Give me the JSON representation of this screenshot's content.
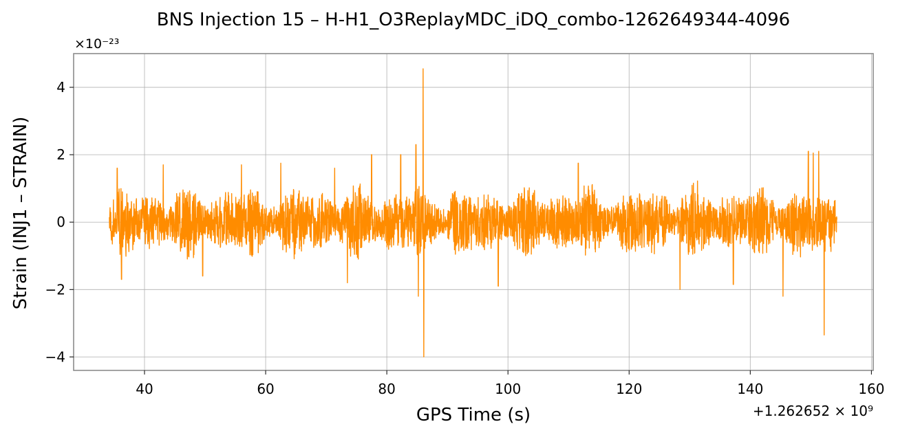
{
  "chart_data": {
    "type": "line",
    "title": "BNS Injection 15 – H-H1_O3ReplayMDC_iDQ_combo-1262649344-4096",
    "xlabel": "GPS Time (s)",
    "ylabel": "Strain (INJ1 – STRAIN)",
    "y_multiplier_label": "×10⁻²³",
    "x_offset_label": "+1.262652 × 10⁹",
    "xlim": [
      28.3,
      160.3
    ],
    "ylim": [
      -4.4,
      5.0
    ],
    "x_ticks": [
      40,
      60,
      80,
      100,
      120,
      140,
      160
    ],
    "x_tick_labels": [
      "40",
      "60",
      "80",
      "100",
      "120",
      "140",
      "160"
    ],
    "y_ticks": [
      -4,
      -2,
      0,
      2,
      4
    ],
    "y_tick_labels": [
      "−4",
      "−2",
      "0",
      "2",
      "4"
    ],
    "grid": true,
    "line_color": "#ff8c00",
    "series": [
      {
        "x_range": [
          34.2,
          154.3
        ],
        "baseline": 0,
        "typical_amplitude": 1.2,
        "peaks": [
          {
            "x": 35.5,
            "y": 1.6
          },
          {
            "x": 36.2,
            "y": -1.7
          },
          {
            "x": 43.1,
            "y": 1.7
          },
          {
            "x": 49.6,
            "y": -1.6
          },
          {
            "x": 56.0,
            "y": 1.7
          },
          {
            "x": 62.5,
            "y": 1.75
          },
          {
            "x": 71.4,
            "y": 1.6
          },
          {
            "x": 73.5,
            "y": -1.8
          },
          {
            "x": 77.5,
            "y": 2.0
          },
          {
            "x": 82.3,
            "y": 2.0
          },
          {
            "x": 84.8,
            "y": 2.3
          },
          {
            "x": 85.2,
            "y": -2.2
          },
          {
            "x": 86.0,
            "y": 4.55
          },
          {
            "x": 86.1,
            "y": -4.0
          },
          {
            "x": 98.4,
            "y": -1.9
          },
          {
            "x": 111.6,
            "y": 1.75
          },
          {
            "x": 128.4,
            "y": -2.0
          },
          {
            "x": 137.2,
            "y": -1.85
          },
          {
            "x": 145.4,
            "y": -2.2
          },
          {
            "x": 149.6,
            "y": 2.1
          },
          {
            "x": 150.4,
            "y": 2.05
          },
          {
            "x": 151.3,
            "y": 2.1
          },
          {
            "x": 152.2,
            "y": -3.35
          }
        ]
      }
    ]
  }
}
